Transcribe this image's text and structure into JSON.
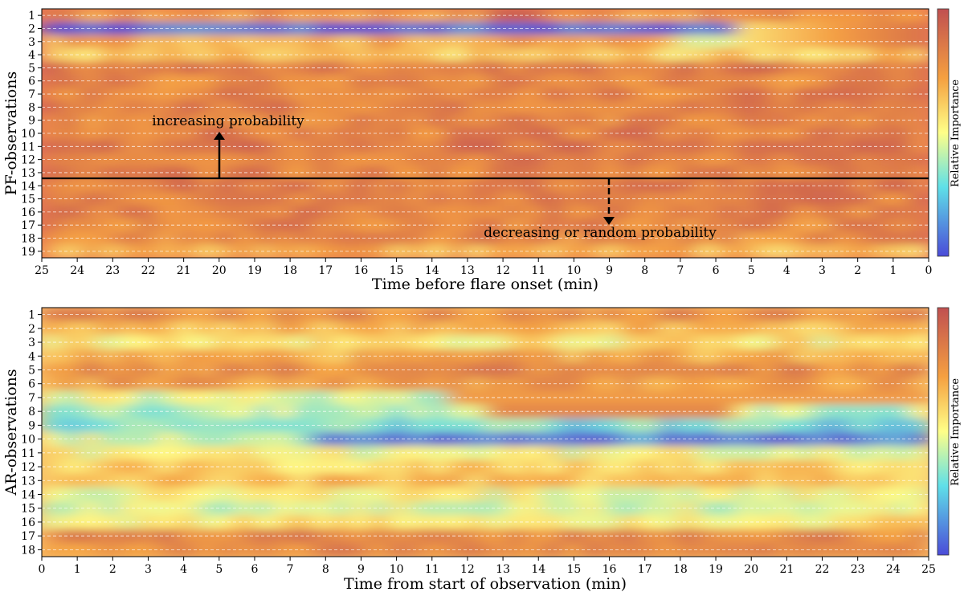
{
  "palette": {
    "low": "#4b4bd8",
    "mid_low": "#5fe0e8",
    "mid": "#ffff88",
    "mid_high": "#f5a040",
    "high": "#c05050"
  },
  "chart_data": [
    {
      "type": "heatmap",
      "xlabel": "Time before flare onset (min)",
      "ylabel": "PF-observations",
      "colorbar_label": "Relative Importance",
      "x_ticks": [
        "25",
        "24",
        "23",
        "22",
        "21",
        "20",
        "19",
        "18",
        "17",
        "16",
        "15",
        "14",
        "13",
        "12",
        "11",
        "10",
        "9",
        "8",
        "7",
        "6",
        "5",
        "4",
        "3",
        "2",
        "1",
        "0"
      ],
      "x_range": [
        25,
        0
      ],
      "y_ticks": [
        "1",
        "2",
        "3",
        "4",
        "5",
        "6",
        "7",
        "8",
        "9",
        "10",
        "11",
        "12",
        "13",
        "14",
        "15",
        "16",
        "17",
        "18",
        "19"
      ],
      "grid": "horizontal dashed",
      "divider_after_row": 14,
      "annotations": [
        {
          "text": "increasing probability",
          "arrow_at_x": 20,
          "direction": "up"
        },
        {
          "text": "decreasing or random probability",
          "arrow_at_x": 9,
          "direction": "down"
        }
      ],
      "row_values": [
        0.75,
        0.05,
        0.7,
        0.6,
        0.85,
        0.8,
        0.82,
        0.84,
        0.8,
        0.82,
        0.85,
        0.84,
        0.82,
        0.85,
        0.83,
        0.82,
        0.8,
        0.78,
        0.65
      ]
    },
    {
      "type": "heatmap",
      "xlabel": "Time from start of observation (min)",
      "ylabel": "AR-observations",
      "colorbar_label": "Relative Importance",
      "x_ticks": [
        "0",
        "1",
        "2",
        "3",
        "4",
        "5",
        "6",
        "7",
        "8",
        "9",
        "10",
        "11",
        "12",
        "13",
        "14",
        "15",
        "16",
        "17",
        "18",
        "19",
        "20",
        "21",
        "22",
        "23",
        "24",
        "25"
      ],
      "x_range": [
        0,
        25
      ],
      "y_ticks": [
        "1",
        "2",
        "3",
        "4",
        "5",
        "6",
        "7",
        "8",
        "9",
        "10",
        "11",
        "12",
        "13",
        "14",
        "15",
        "16",
        "17",
        "18"
      ],
      "grid": "horizontal dashed",
      "row_values": [
        0.8,
        0.65,
        0.55,
        0.7,
        0.8,
        0.75,
        0.45,
        0.4,
        0.3,
        0.1,
        0.5,
        0.6,
        0.65,
        0.5,
        0.45,
        0.55,
        0.82,
        0.8
      ]
    }
  ]
}
